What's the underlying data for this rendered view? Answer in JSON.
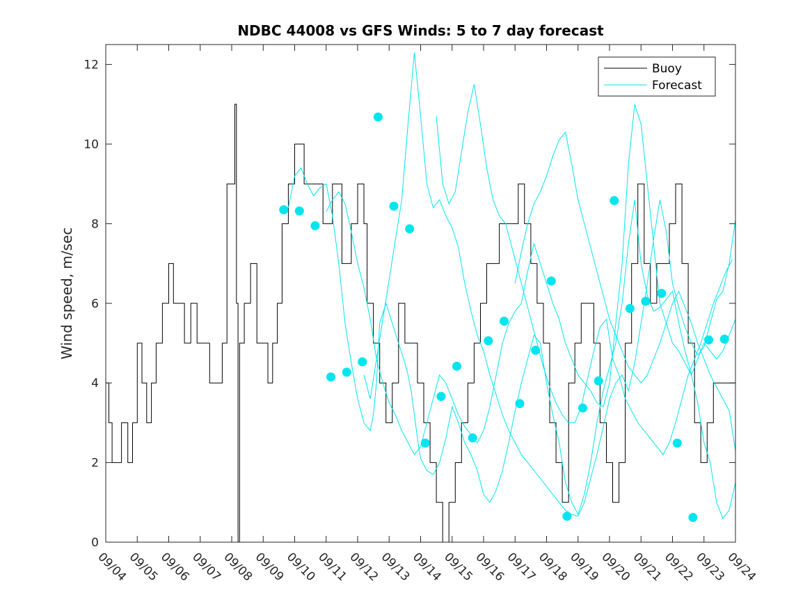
{
  "chart_data": {
    "type": "line",
    "title": "NDBC 44008 vs GFS Winds: 5 to 7 day forecast",
    "xlabel": "",
    "ylabel": "Wind speed, m/sec",
    "xlim": [
      0,
      20
    ],
    "ylim": [
      0,
      12.5
    ],
    "x_tick_labels": [
      "09/04",
      "09/05",
      "09/06",
      "09/07",
      "09/08",
      "09/09",
      "09/10",
      "09/11",
      "09/12",
      "09/13",
      "09/14",
      "09/15",
      "09/16",
      "09/17",
      "09/18",
      "09/19",
      "09/20",
      "09/21",
      "09/22",
      "09/23",
      "09/24"
    ],
    "y_ticks": [
      0,
      2,
      4,
      6,
      8,
      10,
      12
    ],
    "legend_position": "top-right",
    "series": [
      {
        "name": "Buoy",
        "color": "#000000",
        "x": [
          0.0,
          0.1,
          0.2,
          0.35,
          0.5,
          0.7,
          0.85,
          1.0,
          1.15,
          1.3,
          1.45,
          1.6,
          1.8,
          2.0,
          2.15,
          2.3,
          2.5,
          2.7,
          2.9,
          3.1,
          3.3,
          3.5,
          3.7,
          3.85,
          4.0,
          4.1,
          4.15,
          4.2,
          4.25,
          4.4,
          4.6,
          4.8,
          5.0,
          5.15,
          5.3,
          5.45,
          5.6,
          5.8,
          6.0,
          6.3,
          6.6,
          6.9,
          7.2,
          7.4,
          7.5,
          7.6,
          7.8,
          8.0,
          8.2,
          8.3,
          8.5,
          8.7,
          8.9,
          9.1,
          9.3,
          9.5,
          9.7,
          9.9,
          10.1,
          10.3,
          10.5,
          10.7,
          10.9,
          11.1,
          11.3,
          11.5,
          11.7,
          11.9,
          12.1,
          12.3,
          12.5,
          12.7,
          12.9,
          13.1,
          13.3,
          13.5,
          13.7,
          13.9,
          14.1,
          14.3,
          14.5,
          14.7,
          14.9,
          15.1,
          15.3,
          15.5,
          15.7,
          15.9,
          16.1,
          16.3,
          16.5,
          16.7,
          16.9,
          17.1,
          17.3,
          17.5,
          17.7,
          17.9,
          18.1,
          18.3,
          18.5,
          18.7,
          18.9,
          19.1,
          19.3,
          19.5,
          19.7,
          20.0
        ],
        "values": [
          4,
          3,
          2,
          2,
          3,
          2,
          3,
          5,
          4,
          3,
          4,
          5,
          6,
          7,
          6,
          6,
          5,
          6,
          5,
          5,
          4,
          4,
          5,
          9,
          9,
          11,
          6,
          0,
          5,
          6,
          7,
          5,
          5,
          4,
          5,
          6,
          8,
          9,
          10,
          9,
          9,
          8,
          9,
          9,
          7,
          7,
          8,
          9,
          8,
          6,
          5,
          4,
          3,
          4,
          6,
          5,
          5,
          4,
          3,
          2,
          1,
          0,
          1,
          2,
          3,
          4,
          5,
          6,
          7,
          7,
          8,
          8,
          8,
          9,
          8,
          7,
          6,
          5,
          3,
          2,
          1,
          4,
          5,
          6,
          6,
          5,
          3,
          2,
          1,
          2,
          5,
          7,
          9,
          7,
          6,
          7,
          7,
          8,
          9,
          7,
          5,
          3,
          2,
          3,
          4,
          4,
          4,
          5
        ]
      },
      {
        "name": "Forecast",
        "color": "#00e5ee",
        "traces": [
          {
            "x": [
              5.6,
              5.8,
              6.0,
              6.2,
              6.4,
              6.6,
              6.8,
              7.0,
              7.2,
              7.4,
              7.6,
              7.8,
              8.0,
              8.2,
              8.4,
              8.5,
              8.6,
              8.7,
              8.9,
              9.1,
              9.3,
              9.5,
              9.6,
              9.7,
              9.8,
              9.9,
              10.0,
              10.2,
              10.4,
              10.6,
              10.8,
              11.0,
              11.2,
              11.4,
              11.6,
              11.8,
              12.0,
              12.2,
              12.4,
              12.6,
              12.8,
              13.0,
              13.2,
              13.4,
              13.6,
              13.8,
              14.0,
              14.2,
              14.4,
              14.6,
              14.8,
              15.0,
              15.2,
              15.4,
              15.6,
              15.8,
              16.0,
              16.2,
              16.4,
              16.6,
              16.8,
              17.0,
              17.2,
              17.4,
              17.6,
              17.8,
              18.0,
              18.2,
              18.4,
              18.6,
              18.8,
              19.0,
              19.2,
              19.4,
              19.6,
              19.8,
              20.0
            ],
            "y": [
              8.35,
              8.4,
              9.2,
              9.4,
              9.0,
              8.7,
              8.9,
              9.0,
              8.2,
              7.0,
              5.5,
              4.5,
              3.6,
              3.0,
              2.8,
              3.2,
              4.0,
              5.5,
              6.0,
              5.5,
              5.0,
              4.5,
              4.2,
              3.8,
              3.2,
              2.6,
              2.1,
              1.8,
              1.7,
              2.0,
              2.6,
              3.4,
              3.0,
              2.5,
              2.2,
              1.8,
              1.2,
              1.0,
              1.3,
              1.8,
              2.5,
              3.3,
              4.0,
              4.6,
              5.2,
              5.0,
              4.0,
              3.2,
              2.5,
              1.5,
              1.0,
              0.7,
              1.2,
              2.0,
              3.0,
              3.8,
              4.4,
              5.0,
              6.0,
              7.5,
              8.6,
              7.0,
              6.2,
              5.8,
              5.9,
              6.1,
              6.3,
              5.5,
              4.8,
              4.2,
              3.5,
              2.5,
              2.0,
              1.0,
              0.6,
              0.8,
              1.5
            ]
          },
          {
            "x": [
              7.0,
              7.2,
              7.4,
              7.6,
              7.8,
              8.0,
              8.2,
              8.4,
              8.6,
              8.8,
              9.0,
              9.2,
              9.4,
              9.6,
              9.8,
              10.0,
              10.2,
              10.4,
              10.6,
              10.8,
              11.0,
              11.2,
              11.4,
              11.6,
              11.8,
              12.0,
              12.2,
              12.4,
              12.6,
              12.8,
              13.0,
              13.2,
              13.4,
              13.6,
              13.8,
              14.0,
              14.2,
              14.4,
              14.6,
              14.8,
              15.0,
              15.2,
              15.4,
              15.6,
              15.8,
              16.0,
              16.2,
              16.4,
              16.6,
              16.8,
              17.0,
              17.2,
              17.4,
              17.6,
              17.8,
              18.0,
              18.2,
              18.4,
              18.6,
              18.8,
              19.0,
              19.2,
              19.4,
              19.6,
              19.8,
              20.0
            ],
            "y": [
              8.3,
              8.6,
              8.8,
              8.5,
              7.8,
              7.0,
              6.4,
              5.6,
              4.6,
              4.0,
              3.5,
              3.2,
              2.8,
              2.5,
              2.2,
              2.4,
              3.0,
              3.6,
              4.2,
              4.0,
              3.6,
              3.2,
              2.9,
              2.7,
              2.5,
              2.8,
              3.4,
              4.2,
              5.0,
              5.5,
              5.8,
              6.0,
              6.8,
              7.5,
              7.0,
              6.5,
              6.0,
              5.6,
              5.0,
              4.6,
              4.2,
              4.0,
              3.8,
              3.5,
              3.4,
              4.0,
              5.5,
              7.0,
              9.5,
              11.0,
              10.5,
              9.0,
              7.5,
              6.0,
              5.5,
              5.0,
              4.8,
              4.5,
              4.2,
              4.6,
              5.0,
              4.8,
              4.6,
              4.8,
              5.2,
              5.6
            ]
          },
          {
            "x": [
              8.2,
              8.4,
              8.6,
              8.8,
              9.0,
              9.2,
              9.4,
              9.6,
              9.8,
              10.0,
              10.2,
              10.4,
              10.6,
              10.8,
              11.0,
              11.2,
              11.4,
              11.6,
              11.8,
              12.0,
              12.2,
              12.4,
              12.6,
              12.8,
              13.0,
              13.2,
              13.4,
              13.6,
              13.8,
              14.0,
              14.2,
              14.4,
              14.6,
              14.8,
              15.0,
              15.2,
              15.4,
              15.6,
              15.8,
              16.0,
              16.2,
              16.4,
              16.6,
              16.8,
              17.0,
              17.2,
              17.4,
              17.6,
              17.8,
              18.0,
              18.2,
              18.4,
              18.6,
              18.8,
              19.0,
              19.2,
              19.4,
              19.6,
              19.8,
              20.0
            ],
            "y": [
              4.2,
              3.6,
              4.6,
              5.6,
              6.6,
              7.6,
              8.6,
              10.5,
              12.3,
              10.7,
              9.0,
              8.4,
              8.6,
              8.2,
              7.9,
              7.4,
              6.5,
              5.8,
              5.2,
              4.8,
              4.2,
              3.7,
              3.2,
              2.8,
              2.5,
              2.2,
              2.0,
              1.8,
              1.6,
              1.4,
              1.2,
              1.0,
              0.8,
              0.7,
              0.65,
              1.0,
              1.6,
              2.2,
              2.9,
              3.6,
              4.0,
              4.2,
              3.8,
              4.5,
              5.5,
              6.5,
              7.6,
              8.6,
              7.8,
              6.5,
              5.9,
              5.4,
              5.0,
              4.7,
              4.9,
              5.5,
              6.1,
              6.3,
              7.0,
              8.1
            ]
          },
          {
            "x": [
              10.5,
              10.7,
              10.9,
              11.1,
              11.3,
              11.5,
              11.7,
              11.9,
              12.1,
              12.3,
              12.5,
              12.7,
              12.9,
              13.1,
              13.3,
              13.5,
              13.7,
              13.9,
              14.1,
              14.3,
              14.5,
              14.7,
              14.9,
              15.1,
              15.3,
              15.5,
              15.7,
              15.9,
              16.1,
              16.3,
              16.5,
              16.7,
              16.9,
              17.1,
              17.3,
              17.5,
              17.7,
              17.9,
              18.1,
              18.3,
              18.5,
              18.7,
              18.9,
              19.1,
              19.3,
              19.5,
              19.7,
              19.9
            ],
            "y": [
              10.7,
              9.0,
              8.5,
              8.8,
              9.8,
              10.8,
              11.5,
              10.5,
              9.4,
              8.6,
              8.2,
              8.0,
              7.4,
              6.8,
              6.2,
              5.6,
              5.0,
              4.4,
              3.9,
              3.5,
              3.2,
              3.0,
              3.0,
              3.4,
              4.1,
              4.8,
              5.4,
              5.6,
              4.6,
              4.2,
              3.6,
              3.3,
              3.0,
              2.8,
              2.6,
              2.4,
              2.2,
              2.5,
              3.0,
              3.6,
              4.2,
              4.6,
              5.0,
              5.5,
              6.0,
              6.4,
              6.8,
              7.1
            ]
          },
          {
            "x": [
              13.0,
              13.2,
              13.4,
              13.6,
              13.8,
              14.0,
              14.2,
              14.4,
              14.6,
              14.8,
              15.0,
              15.2,
              15.4,
              15.6,
              15.8,
              16.0,
              16.2,
              16.4,
              16.6,
              16.8,
              17.0,
              17.2,
              17.4,
              17.6,
              17.8,
              18.0,
              18.2,
              18.4,
              18.6,
              18.8,
              19.0,
              19.2,
              19.4,
              19.6,
              19.8,
              20.0
            ],
            "y": [
              6.5,
              7.3,
              8.0,
              8.5,
              8.8,
              9.2,
              9.7,
              10.1,
              10.3,
              9.5,
              8.6,
              8.0,
              7.4,
              6.8,
              6.2,
              5.6,
              5.2,
              4.8,
              4.4,
              4.2,
              4.0,
              4.2,
              4.6,
              5.0,
              5.5,
              6.0,
              6.3,
              5.9,
              5.5,
              5.0,
              4.6,
              4.2,
              3.9,
              3.6,
              3.3,
              2.3
            ]
          }
        ],
        "markers": {
          "x": [
            5.65,
            6.15,
            6.65,
            7.15,
            7.65,
            8.15,
            8.65,
            9.15,
            9.65,
            10.15,
            10.65,
            11.15,
            11.65,
            12.15,
            12.65,
            13.15,
            13.65,
            14.15,
            14.65,
            15.15,
            15.65,
            16.15,
            16.65,
            17.15,
            17.65,
            18.15,
            18.65,
            19.15,
            19.65
          ],
          "y": [
            8.35,
            8.32,
            7.95,
            4.15,
            4.27,
            4.53,
            10.68,
            8.44,
            7.87,
            2.49,
            3.66,
            4.42,
            2.62,
            5.06,
            5.55,
            3.48,
            4.82,
            6.56,
            0.65,
            3.37,
            4.05,
            8.58,
            5.87,
            6.05,
            6.25,
            2.49,
            0.62,
            5.08,
            5.1
          ]
        }
      }
    ]
  }
}
